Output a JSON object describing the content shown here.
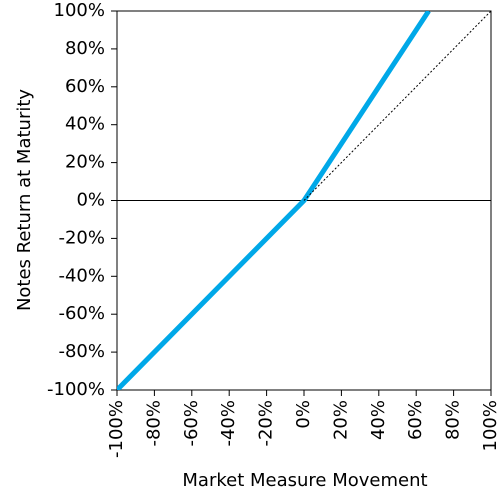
{
  "chart_data": {
    "type": "line",
    "x_label": "Market Measure Movement",
    "y_label": "Notes Return at Maturity",
    "series": [
      {
        "color": "#00a8e8",
        "line_style": "solid",
        "x": [
          -100,
          0,
          66.67
        ],
        "values": [
          -100,
          0,
          100
        ]
      },
      {
        "color": "#000000",
        "line_style": "dotted",
        "x": [
          0,
          100
        ],
        "values": [
          0,
          100
        ]
      }
    ],
    "hline": 0,
    "xlim": [
      -100,
      100
    ],
    "ylim": [
      -100,
      100
    ],
    "xticks": [
      {
        "value": -100,
        "label": "-100%"
      },
      {
        "value": -80,
        "label": "-80%"
      },
      {
        "value": -60,
        "label": "-60%"
      },
      {
        "value": -40,
        "label": "-40%"
      },
      {
        "value": -20,
        "label": "-20%"
      },
      {
        "value": 0,
        "label": "0%"
      },
      {
        "value": 20,
        "label": "20%"
      },
      {
        "value": 40,
        "label": "40%"
      },
      {
        "value": 60,
        "label": "60%"
      },
      {
        "value": 80,
        "label": "80%"
      },
      {
        "value": 100,
        "label": "100%"
      }
    ],
    "yticks": [
      {
        "value": -100,
        "label": "-100%"
      },
      {
        "value": -80,
        "label": "-80%"
      },
      {
        "value": -60,
        "label": "-60%"
      },
      {
        "value": -40,
        "label": "-40%"
      },
      {
        "value": -20,
        "label": "-20%"
      },
      {
        "value": 0,
        "label": "0%"
      },
      {
        "value": 20,
        "label": "20%"
      },
      {
        "value": 40,
        "label": "40%"
      },
      {
        "value": 60,
        "label": "60%"
      },
      {
        "value": 80,
        "label": "80%"
      },
      {
        "value": 100,
        "label": "100%"
      }
    ]
  }
}
